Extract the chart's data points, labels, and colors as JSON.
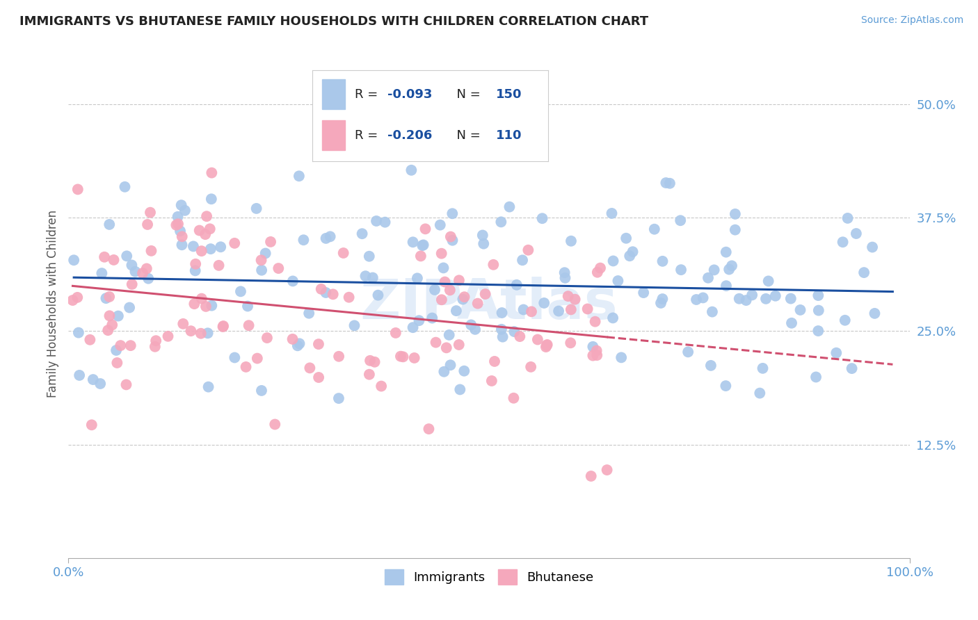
{
  "title": "IMMIGRANTS VS BHUTANESE FAMILY HOUSEHOLDS WITH CHILDREN CORRELATION CHART",
  "source_text": "Source: ZipAtlas.com",
  "ylabel": "Family Households with Children",
  "xlim": [
    0.0,
    1.0
  ],
  "ylim": [
    0.0,
    0.56
  ],
  "yticks": [
    0.125,
    0.25,
    0.375,
    0.5
  ],
  "yticklabels": [
    "12.5%",
    "25.0%",
    "37.5%",
    "50.0%"
  ],
  "xtick_left": "0.0%",
  "xtick_right": "100.0%",
  "immigrants_color": "#aac8ea",
  "bhutanese_color": "#f5a8bc",
  "trend_immigrants_color": "#1a4fa0",
  "trend_bhutanese_color": "#d05070",
  "watermark": "ZIPAtlas",
  "imm_seed": 7,
  "bhu_seed": 13,
  "legend_line1": [
    "R = ",
    "-0.093",
    "  N = ",
    "150"
  ],
  "legend_line2": [
    "R = ",
    "-0.206",
    "  N = ",
    "110"
  ],
  "bottom_legend": [
    "Immigrants",
    "Bhutanese"
  ],
  "title_fontsize": 13,
  "tick_fontsize": 13,
  "ylabel_fontsize": 12,
  "tick_color": "#5b9bd5",
  "grid_color": "#c8c8c8",
  "grid_style": "--",
  "legend_box_color": "#c0c0c0"
}
